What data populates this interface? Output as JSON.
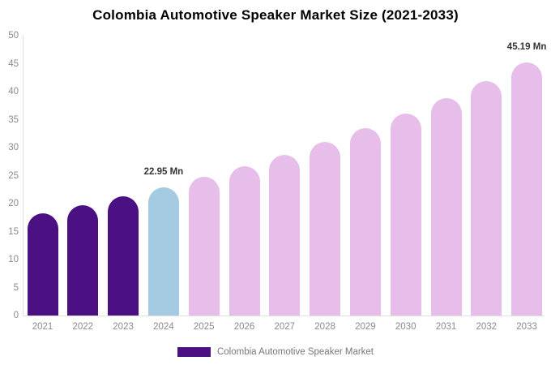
{
  "title": "Colombia Automotive Speaker Market Size (2021-2033)",
  "legend": {
    "label": "Colombia Automotive Speaker Market",
    "swatch_color": "#4B1182"
  },
  "colors": {
    "historical": "#4B1182",
    "current": "#A4CBE2",
    "forecast": "#E6BEE9",
    "axis_line": "#e0e0e0",
    "tick_text": "#8a8a8a",
    "value_label_text": "#333333"
  },
  "chart_data": {
    "type": "bar",
    "title": "Colombia Automotive Speaker Market Size (2021-2033)",
    "categories": [
      "2021",
      "2022",
      "2023",
      "2024",
      "2025",
      "2026",
      "2027",
      "2028",
      "2029",
      "2030",
      "2031",
      "2032",
      "2033"
    ],
    "values": [
      18.31,
      19.74,
      21.29,
      22.95,
      24.74,
      26.68,
      28.76,
      31.01,
      33.43,
      36.04,
      38.86,
      41.9,
      45.19
    ],
    "bar_roles": [
      "historical",
      "historical",
      "historical",
      "current",
      "forecast",
      "forecast",
      "forecast",
      "forecast",
      "forecast",
      "forecast",
      "forecast",
      "forecast",
      "forecast"
    ],
    "value_labels": {
      "2024": "22.95 Mn",
      "2033": "45.19 Mn"
    },
    "unit": "Mn",
    "xlabel": "",
    "ylabel": "",
    "ylim": [
      0,
      50
    ],
    "yticks": [
      0,
      5,
      10,
      15,
      20,
      25,
      30,
      35,
      40,
      45,
      50
    ],
    "grid": false,
    "legend_position": "bottom",
    "legend_entries": [
      "Colombia Automotive Speaker Market"
    ]
  }
}
